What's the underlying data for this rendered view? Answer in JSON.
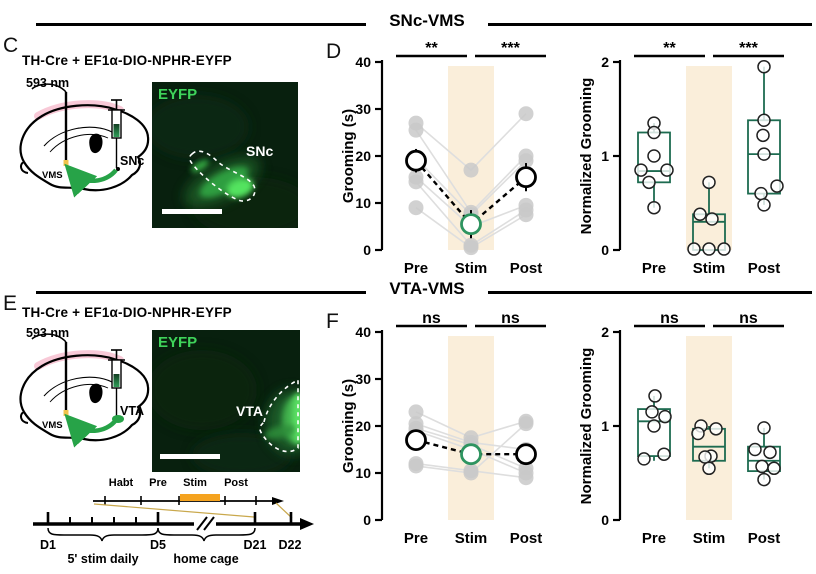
{
  "figure": {
    "headers": [
      {
        "label": "SNc-VMS"
      },
      {
        "label": "VTA-VMS"
      }
    ],
    "panels": {
      "C": {
        "letter": "C",
        "title": "TH-Cre + EF1α-DIO-NPHR-EYFP",
        "wavelength": "593 nm",
        "target_label": "VMS",
        "source_label": "SNc",
        "image_label": "EYFP",
        "image_region": "SNc"
      },
      "D": {
        "letter": "D"
      },
      "E": {
        "letter": "E",
        "title": "TH-Cre + EF1α-DIO-NPHR-EYFP",
        "wavelength": "593 nm",
        "target_label": "VMS",
        "source_label": "VTA",
        "image_label": "EYFP",
        "image_region": "VTA"
      },
      "F": {
        "letter": "F"
      }
    },
    "timeline": {
      "phases": [
        "Habt",
        "Pre",
        "Stim",
        "Post"
      ],
      "days": [
        "D1",
        "D5",
        "D21",
        "D22"
      ],
      "stim_daily_label": "5' stim daily",
      "home_cage_label": "home cage",
      "colors": {
        "stim_bar": "#f5a31f",
        "d22": "#eea32b",
        "stim_daily": "#2d7dd2"
      }
    },
    "colors": {
      "stim_band": "#faeeda",
      "box_green": "#1d6b50",
      "mean_green": "#2e9460",
      "gray_point": "#c9c9c9",
      "gray_line": "#dedede",
      "wavelength_orange": "#eca93f",
      "eyfp_green": "#3fd45a",
      "arrow_green": "#27a348",
      "pink_cortex": "#f6bccd"
    },
    "chart_data": [
      {
        "id": "snc-grooming",
        "type": "paired-line",
        "ylabel": "Grooming (s)",
        "ylim": [
          0,
          40
        ],
        "yticks": [
          0,
          10,
          20,
          30,
          40
        ],
        "categories": [
          "Pre",
          "Stim",
          "Post"
        ],
        "subjects": [
          [
            27,
            17,
            29
          ],
          [
            25.5,
            8,
            20
          ],
          [
            19.5,
            7.5,
            19
          ],
          [
            15.5,
            5,
            9.5
          ],
          [
            14.5,
            1,
            8.5
          ],
          [
            9,
            0.5,
            7.5
          ]
        ],
        "means": [
          19,
          5.5,
          15.5
        ],
        "errors": [
          2.5,
          3,
          3
        ],
        "sig": [
          "**",
          "***"
        ],
        "stim_band_index": 1,
        "legend": "none",
        "grid": false
      },
      {
        "id": "snc-normalized",
        "type": "box",
        "ylabel": "Normalized Grooming",
        "ylim": [
          0,
          2
        ],
        "yticks": [
          0,
          1,
          2
        ],
        "categories": [
          "Pre",
          "Stim",
          "Post"
        ],
        "boxes": [
          {
            "lo": 0.45,
            "q1": 0.72,
            "med": 0.84,
            "q3": 1.25,
            "hi": 1.35,
            "points": [
              [
                1.35,
                0
              ],
              [
                1.25,
                0
              ],
              [
                1.0,
                0
              ],
              [
                0.85,
                -13
              ],
              [
                0.85,
                13
              ],
              [
                0.72,
                -5
              ],
              [
                0.45,
                0
              ]
            ]
          },
          {
            "lo": 0.0,
            "q1": 0.0,
            "med": 0.3,
            "q3": 0.38,
            "hi": 0.72,
            "points": [
              [
                0.72,
                0
              ],
              [
                0.38,
                -9
              ],
              [
                0.33,
                3
              ],
              [
                0.01,
                -15
              ],
              [
                0.01,
                0
              ],
              [
                0.01,
                15
              ]
            ]
          },
          {
            "lo": 0.48,
            "q1": 0.6,
            "med": 1.02,
            "q3": 1.38,
            "hi": 1.95,
            "points": [
              [
                1.95,
                0
              ],
              [
                1.38,
                0
              ],
              [
                1.22,
                -1
              ],
              [
                1.02,
                0
              ],
              [
                0.68,
                13
              ],
              [
                0.6,
                -3
              ],
              [
                0.48,
                0
              ]
            ]
          }
        ],
        "sig": [
          "**",
          "***"
        ],
        "stim_band_index": 1,
        "legend": "none",
        "grid": false
      },
      {
        "id": "vta-grooming",
        "type": "paired-line",
        "ylabel": "Grooming (s)",
        "ylim": [
          0,
          40
        ],
        "yticks": [
          0,
          10,
          20,
          30,
          40
        ],
        "categories": [
          "Pre",
          "Stim",
          "Post"
        ],
        "subjects": [
          [
            23,
            17.5,
            21
          ],
          [
            20.5,
            16.5,
            15
          ],
          [
            19.5,
            16,
            11
          ],
          [
            19,
            15,
            10
          ],
          [
            12,
            10.5,
            9
          ],
          [
            11.5,
            10,
            20.5
          ]
        ],
        "means": [
          17,
          14,
          14
        ],
        "errors": [
          1.8,
          1.8,
          1.8
        ],
        "sig": [
          "ns",
          "ns"
        ],
        "stim_band_index": 1,
        "legend": "none",
        "grid": false
      },
      {
        "id": "vta-normalized",
        "type": "box",
        "ylabel": "Normalized Grooming",
        "ylim": [
          0,
          2
        ],
        "yticks": [
          0,
          1,
          2
        ],
        "categories": [
          "Pre",
          "Stim",
          "Post"
        ],
        "boxes": [
          {
            "lo": 0.63,
            "q1": 0.68,
            "med": 1.05,
            "q3": 1.18,
            "hi": 1.32,
            "points": [
              [
                1.32,
                1
              ],
              [
                1.15,
                -2
              ],
              [
                1.1,
                11
              ],
              [
                1.0,
                0
              ],
              [
                0.7,
                10
              ],
              [
                0.65,
                -10
              ]
            ]
          },
          {
            "lo": 0.55,
            "q1": 0.63,
            "med": 0.78,
            "q3": 0.97,
            "hi": 1.0,
            "points": [
              [
                1.0,
                -8
              ],
              [
                0.97,
                7
              ],
              [
                0.92,
                -11
              ],
              [
                0.68,
                2
              ],
              [
                0.67,
                -4
              ],
              [
                0.55,
                0
              ]
            ]
          },
          {
            "lo": 0.43,
            "q1": 0.52,
            "med": 0.63,
            "q3": 0.78,
            "hi": 0.98,
            "points": [
              [
                0.98,
                0
              ],
              [
                0.75,
                -9
              ],
              [
                0.72,
                6
              ],
              [
                0.57,
                -2
              ],
              [
                0.55,
                10
              ],
              [
                0.43,
                0
              ]
            ]
          }
        ],
        "sig": [
          "ns",
          "ns"
        ],
        "stim_band_index": 1,
        "legend": "none",
        "grid": false
      }
    ]
  }
}
